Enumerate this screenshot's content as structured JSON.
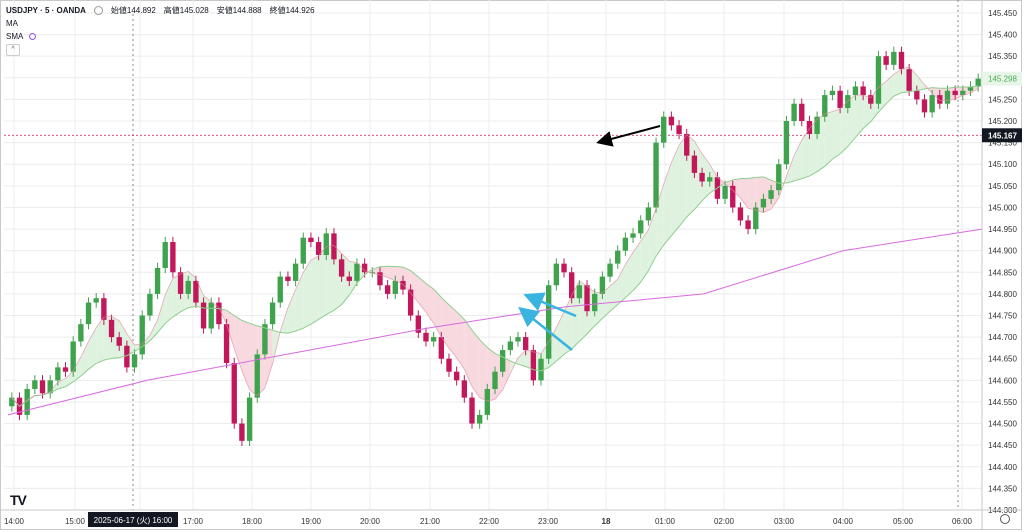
{
  "legend": {
    "symbol": "USDJPY · 5 · OANDA",
    "open": "始値144.892",
    "high": "高値145.028",
    "low": "安値144.888",
    "close": "終値144.926",
    "ma_label": "MA",
    "sma_label": "SMA",
    "collapse_glyph": "^"
  },
  "watermark": "TV",
  "chart_data": {
    "type": "candlestick",
    "title": "",
    "ylim": [
      144.3,
      145.48
    ],
    "y_ticks": [
      "145.450",
      "145.400",
      "145.350",
      "145.300",
      "145.250",
      "145.200",
      "145.150",
      "145.100",
      "145.050",
      "145.000",
      "144.950",
      "144.900",
      "144.850",
      "144.800",
      "144.750",
      "144.700",
      "144.650",
      "144.600",
      "144.550",
      "144.500",
      "144.450",
      "144.400",
      "144.350",
      "144.300"
    ],
    "x_ticks": [
      "14:00",
      "15:00",
      "16:00",
      "17:00",
      "18:00",
      "19:00",
      "20:00",
      "21:00",
      "22:00",
      "23:00",
      "18",
      "01:00",
      "02:00",
      "03:00",
      "04:00",
      "05:00",
      "06:00"
    ],
    "crosshair_date": "2025-06-17 (火)",
    "crosshair_time": "16:00",
    "price_labels": [
      {
        "value": 145.298,
        "text": "145.298",
        "color": "#4caf50"
      },
      {
        "value": 145.167,
        "text": "145.167",
        "color": "#131722"
      }
    ],
    "colors": {
      "up": "#26a69a",
      "down": "#c2185b",
      "up_fill": "#3fa34d",
      "down_fill": "#c2185b",
      "sma": "#d96be0",
      "ma_fast": "#e08aa0",
      "cloud_up": "#dff2df",
      "cloud_down": "#f8d9df"
    },
    "candles_close": [
      144.56,
      144.52,
      144.58,
      144.6,
      144.57,
      144.6,
      144.63,
      144.62,
      144.69,
      144.73,
      144.78,
      144.79,
      144.74,
      144.7,
      144.68,
      144.63,
      144.66,
      144.75,
      144.8,
      144.86,
      144.92,
      144.85,
      144.8,
      144.83,
      144.78,
      144.72,
      144.78,
      144.73,
      144.64,
      144.5,
      144.46,
      144.56,
      144.66,
      144.73,
      144.78,
      144.84,
      144.83,
      144.87,
      144.93,
      144.92,
      144.89,
      144.94,
      144.88,
      144.84,
      144.83,
      144.87,
      144.85,
      144.85,
      144.82,
      144.8,
      144.83,
      144.81,
      144.75,
      144.71,
      144.69,
      144.7,
      144.65,
      144.62,
      144.6,
      144.56,
      144.5,
      144.52,
      144.58,
      144.62,
      144.67,
      144.69,
      144.7,
      144.67,
      144.6,
      144.65,
      144.82,
      144.87,
      144.85,
      144.79,
      144.82,
      144.76,
      144.8,
      144.84,
      144.87,
      144.9,
      144.93,
      144.94,
      144.97,
      145.0,
      145.15,
      145.21,
      145.19,
      145.17,
      145.12,
      145.08,
      145.06,
      145.07,
      145.02,
      145.05,
      145.0,
      144.97,
      144.95,
      145.0,
      145.02,
      145.04,
      145.1,
      145.2,
      145.24,
      145.2,
      145.17,
      145.21,
      145.26,
      145.27,
      145.23,
      145.26,
      145.28,
      145.26,
      145.24,
      145.35,
      145.33,
      145.36,
      145.32,
      145.27,
      145.25,
      145.22,
      145.26,
      145.24,
      145.27,
      145.26,
      145.27,
      145.28,
      145.298
    ],
    "sma_series": [
      144.52,
      144.6,
      144.66,
      144.72,
      144.77,
      144.8,
      144.9,
      144.95
    ],
    "annotations": [
      {
        "type": "arrow",
        "color": "#000000"
      },
      {
        "type": "arrow",
        "color": "#39b4e0"
      },
      {
        "type": "arrow",
        "color": "#39b4e0"
      }
    ]
  }
}
